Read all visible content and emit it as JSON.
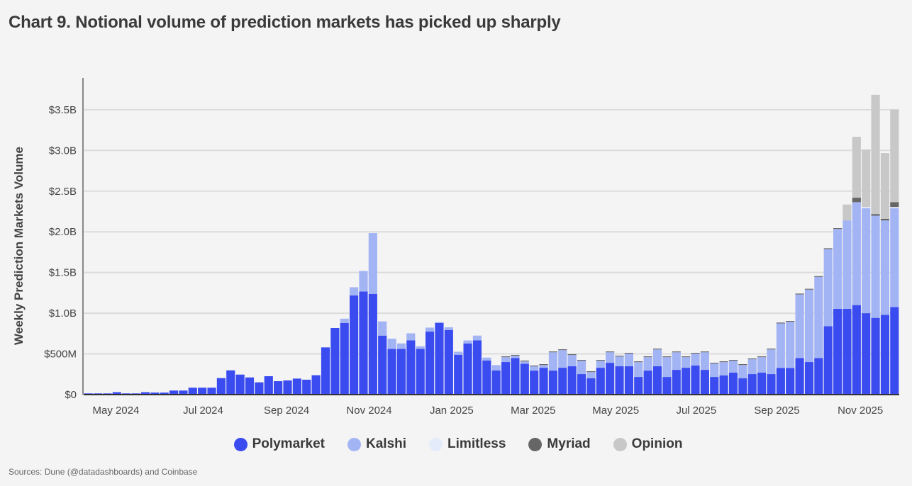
{
  "title": "Chart 9. Notional volume of prediction markets has picked up sharply",
  "source": "Sources: Dune (@datadashboards) and Coinbase",
  "chart_data": {
    "type": "bar",
    "stacked": true,
    "title": "Chart 9. Notional volume of prediction markets has picked up sharply",
    "xlabel": "",
    "ylabel": "Weekly Prediction Markets Volume",
    "units": "USD millions per week",
    "ylim": [
      0,
      3800
    ],
    "grid": true,
    "legend_placement": "bottom",
    "y_ticks": [
      {
        "v": 0,
        "label": "$0"
      },
      {
        "v": 500,
        "label": "$500M"
      },
      {
        "v": 1000,
        "label": "$1.0B"
      },
      {
        "v": 1500,
        "label": "$1.5B"
      },
      {
        "v": 2000,
        "label": "$2.0B"
      },
      {
        "v": 2500,
        "label": "$2.5B"
      },
      {
        "v": 3000,
        "label": "$3.0B"
      },
      {
        "v": 3500,
        "label": "$3.5B"
      }
    ],
    "x_ticks": [
      {
        "week": 3.4,
        "label": "May 2024"
      },
      {
        "week": 12.6,
        "label": "Jul 2024"
      },
      {
        "week": 21.4,
        "label": "Sep 2024"
      },
      {
        "week": 30.1,
        "label": "Nov 2024"
      },
      {
        "week": 38.8,
        "label": "Jan 2025"
      },
      {
        "week": 47.4,
        "label": "Mar 2025"
      },
      {
        "week": 56.1,
        "label": "May 2025"
      },
      {
        "week": 64.6,
        "label": "Jul 2025"
      },
      {
        "week": 73.1,
        "label": "Sep 2025"
      },
      {
        "week": 81.9,
        "label": "Nov 2025"
      }
    ],
    "series": [
      {
        "name": "Polymarket",
        "color": "#3a4cf0",
        "values": [
          15,
          15,
          15,
          30,
          15,
          15,
          30,
          25,
          25,
          50,
          50,
          85,
          85,
          85,
          203,
          298,
          246,
          211,
          151,
          226,
          165,
          174,
          197,
          183,
          238,
          580,
          818,
          881,
          1218,
          1267,
          1238,
          725,
          562,
          562,
          666,
          562,
          774,
          881,
          794,
          490,
          629,
          666,
          420,
          296,
          400,
          450,
          380,
          295,
          330,
          295,
          330,
          348,
          252,
          200,
          330,
          391,
          348,
          348,
          217,
          295,
          348,
          217,
          304,
          330,
          357,
          304,
          217,
          235,
          270,
          200,
          252,
          270,
          252,
          328,
          328,
          450,
          400,
          450,
          841,
          1053,
          1053,
          1100,
          1000,
          943,
          980,
          1075
        ]
      },
      {
        "name": "Kalshi",
        "color": "#a3b4f5",
        "values": [
          0,
          0,
          0,
          0,
          0,
          0,
          0,
          0,
          0,
          0,
          0,
          0,
          0,
          0,
          0,
          0,
          0,
          0,
          0,
          0,
          0,
          0,
          0,
          0,
          0,
          0,
          0,
          52,
          101,
          252,
          746,
          174,
          125,
          67,
          87,
          32,
          49,
          9,
          33,
          37,
          37,
          59,
          35,
          66,
          60,
          27,
          28,
          52,
          34,
          225,
          217,
          138,
          164,
          77,
          86,
          129,
          120,
          155,
          182,
          165,
          207,
          243,
          216,
          130,
          146,
          216,
          164,
          164,
          146,
          164,
          182,
          190,
          303,
          547,
          567,
          781,
          890,
          996,
          947,
          982,
          1087,
          1264,
          1290,
          1255,
          1160,
          1215
        ]
      },
      {
        "name": "Limitless",
        "color": "#e4ebfb",
        "values": [
          0,
          0,
          0,
          0,
          0,
          0,
          0,
          0,
          0,
          0,
          0,
          0,
          0,
          0,
          0,
          0,
          0,
          0,
          0,
          0,
          0,
          0,
          0,
          0,
          0,
          0,
          0,
          0,
          0,
          0,
          0,
          0,
          0,
          0,
          0,
          0,
          0,
          0,
          0,
          0,
          0,
          0,
          0,
          0,
          0,
          0,
          0,
          0,
          0,
          0,
          0,
          0,
          0,
          0,
          0,
          0,
          0,
          0,
          0,
          0,
          0,
          0,
          0,
          0,
          0,
          0,
          0,
          0,
          0,
          0,
          0,
          0,
          0,
          0,
          0,
          0,
          0,
          0,
          0,
          0,
          0,
          0,
          15,
          0,
          0,
          15
        ]
      },
      {
        "name": "Myriad",
        "color": "#666666",
        "values": [
          0,
          0,
          0,
          0,
          0,
          0,
          0,
          0,
          0,
          0,
          0,
          0,
          0,
          0,
          0,
          0,
          0,
          0,
          0,
          0,
          0,
          0,
          0,
          0,
          0,
          0,
          0,
          0,
          0,
          0,
          0,
          0,
          0,
          0,
          0,
          0,
          0,
          0,
          0,
          0,
          0,
          0,
          0,
          0,
          10,
          10,
          10,
          10,
          10,
          10,
          10,
          10,
          10,
          10,
          10,
          10,
          10,
          10,
          10,
          10,
          10,
          10,
          10,
          10,
          10,
          10,
          10,
          10,
          10,
          10,
          10,
          10,
          10,
          10,
          10,
          10,
          10,
          10,
          10,
          10,
          0,
          55,
          0,
          20,
          20,
          60
        ]
      },
      {
        "name": "Opinion",
        "color": "#c8c8c8",
        "values": [
          0,
          0,
          0,
          0,
          0,
          0,
          0,
          0,
          0,
          0,
          0,
          0,
          0,
          0,
          0,
          0,
          0,
          0,
          0,
          0,
          0,
          0,
          0,
          0,
          0,
          0,
          0,
          0,
          0,
          0,
          0,
          0,
          0,
          0,
          0,
          0,
          0,
          0,
          0,
          0,
          0,
          0,
          0,
          0,
          0,
          0,
          0,
          0,
          0,
          0,
          0,
          0,
          0,
          0,
          0,
          0,
          0,
          0,
          0,
          0,
          0,
          0,
          0,
          0,
          0,
          0,
          0,
          0,
          0,
          0,
          0,
          0,
          0,
          0,
          0,
          0,
          0,
          0,
          0,
          0,
          195,
          748,
          705,
          1465,
          807,
          1135
        ]
      }
    ]
  }
}
